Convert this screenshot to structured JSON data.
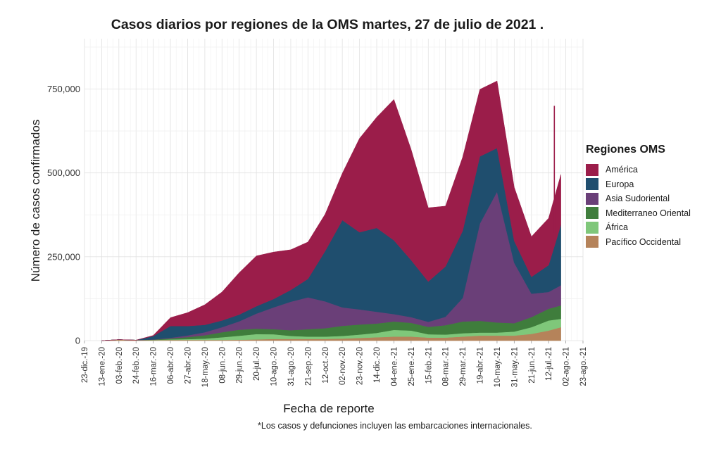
{
  "chart_data": {
    "type": "area",
    "title": "Casos diarios por regiones de la OMS martes, 27 de julio de 2021 .",
    "xlabel": "Fecha de reporte",
    "ylabel": "Número de casos confirmados",
    "footnote": "*Los casos y defunciones incluyen las embarcaciones internacionales.",
    "legend_title": "Regiones OMS",
    "legend_position": "right",
    "stacked": true,
    "grid": true,
    "ylim": [
      0,
      900000
    ],
    "xlim": [
      "2019-12-23",
      "2021-08-23"
    ],
    "y_ticks": [
      0,
      250000,
      500000,
      750000
    ],
    "y_tick_labels": [
      "0",
      "250,000",
      "500,000",
      "750,000"
    ],
    "x_tick_labels": [
      "23-dic.-19",
      "13-ene.-20",
      "03-feb.-20",
      "24-feb.-20",
      "16-mar.-20",
      "06-abr.-20",
      "27-abr.-20",
      "18-may.-20",
      "08-jun.-20",
      "29-jun.-20",
      "20-jul.-20",
      "10-ago.-20",
      "31-ago.-20",
      "21-sep.-20",
      "12-oct.-20",
      "02-nov.-20",
      "23-nov.-20",
      "14-dic.-20",
      "04-ene.-21",
      "25-ene.-21",
      "15-feb.-21",
      "08-mar.-21",
      "29-mar.-21",
      "19-abr.-21",
      "10-may.-21",
      "31-may.-21",
      "21-jun.-21",
      "12-jul.-21",
      "02-ago.-21",
      "23-ago.-21"
    ],
    "x_ticks": [
      "2019-12-23",
      "2020-01-13",
      "2020-02-03",
      "2020-02-24",
      "2020-03-16",
      "2020-04-06",
      "2020-04-27",
      "2020-05-18",
      "2020-06-08",
      "2020-06-29",
      "2020-07-20",
      "2020-08-10",
      "2020-08-31",
      "2020-09-21",
      "2020-10-12",
      "2020-11-02",
      "2020-11-23",
      "2020-12-14",
      "2021-01-04",
      "2021-01-25",
      "2021-02-15",
      "2021-03-08",
      "2021-03-29",
      "2021-04-19",
      "2021-05-10",
      "2021-05-31",
      "2021-06-21",
      "2021-07-12",
      "2021-08-02",
      "2021-08-23"
    ],
    "x": [
      "2020-01-13",
      "2020-02-03",
      "2020-02-24",
      "2020-03-16",
      "2020-04-06",
      "2020-04-27",
      "2020-05-18",
      "2020-06-08",
      "2020-06-29",
      "2020-07-20",
      "2020-08-10",
      "2020-08-31",
      "2020-09-21",
      "2020-10-12",
      "2020-11-02",
      "2020-11-23",
      "2020-12-14",
      "2021-01-04",
      "2021-01-25",
      "2021-02-15",
      "2021-03-08",
      "2021-03-29",
      "2021-04-19",
      "2021-05-10",
      "2021-05-31",
      "2021-06-21",
      "2021-07-12",
      "2021-07-27"
    ],
    "series": [
      {
        "name": "Pacífico Occidental",
        "color": "#b5835a",
        "values": [
          0,
          3000,
          1500,
          1500,
          2000,
          2000,
          2000,
          2000,
          2500,
          3500,
          5000,
          5000,
          5000,
          5000,
          6000,
          8000,
          10000,
          12000,
          12000,
          9000,
          9000,
          12000,
          15000,
          15000,
          15000,
          20000,
          30000,
          40000
        ]
      },
      {
        "name": "África",
        "color": "#7fc77a",
        "values": [
          0,
          0,
          0,
          500,
          1500,
          2500,
          4000,
          8000,
          12000,
          16000,
          14000,
          9000,
          7000,
          7000,
          8000,
          10000,
          13000,
          20000,
          18000,
          10000,
          9000,
          10000,
          9000,
          9000,
          12000,
          20000,
          30000,
          25000
        ]
      },
      {
        "name": "Mediterraneo Oriental",
        "color": "#3f7d3c",
        "values": [
          0,
          0,
          0,
          1000,
          3000,
          6000,
          10000,
          15000,
          18000,
          16000,
          15000,
          17000,
          22000,
          25000,
          30000,
          30000,
          28000,
          25000,
          23000,
          22000,
          28000,
          35000,
          35000,
          30000,
          25000,
          30000,
          35000,
          40000
        ]
      },
      {
        "name": "Asia Sudoriental",
        "color": "#6a3f78",
        "values": [
          0,
          0,
          0,
          500,
          2000,
          5000,
          9000,
          15000,
          25000,
          45000,
          65000,
          85000,
          95000,
          80000,
          55000,
          45000,
          35000,
          22000,
          17000,
          15000,
          25000,
          70000,
          290000,
          390000,
          180000,
          70000,
          50000,
          60000
        ]
      },
      {
        "name": "Europa",
        "color": "#1f4e6e",
        "values": [
          0,
          0,
          0,
          10000,
          35000,
          28000,
          22000,
          20000,
          20000,
          22000,
          25000,
          35000,
          55000,
          150000,
          260000,
          230000,
          250000,
          220000,
          170000,
          120000,
          150000,
          200000,
          200000,
          130000,
          65000,
          50000,
          80000,
          180000
        ]
      },
      {
        "name": "América",
        "color": "#9b1d4a",
        "values": [
          0,
          0,
          0,
          2000,
          25000,
          40000,
          60000,
          85000,
          125000,
          150000,
          140000,
          120000,
          110000,
          110000,
          140000,
          280000,
          330000,
          420000,
          330000,
          220000,
          180000,
          220000,
          200000,
          200000,
          160000,
          120000,
          140000,
          150000
        ]
      }
    ],
    "annotations": [
      {
        "x": "2021-07-19",
        "y": 700000,
        "type": "spike"
      }
    ]
  }
}
